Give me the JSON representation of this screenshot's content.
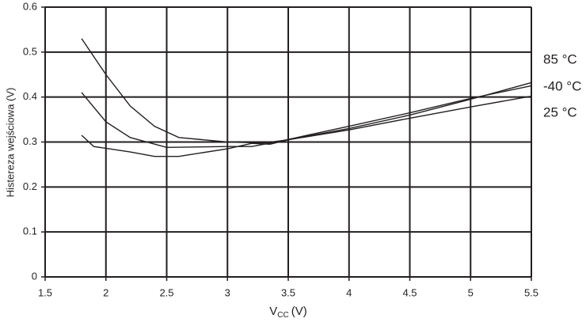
{
  "chart_data": {
    "type": "line",
    "ylabel": "Histereza wejściowa (V)",
    "xlabel": {
      "main": "V",
      "sub": "CC",
      "unit": "(V)"
    },
    "xlim": [
      1.5,
      5.5
    ],
    "xticks": [
      1.5,
      2,
      2.5,
      3,
      3.5,
      4,
      4.5,
      5,
      5.5
    ],
    "ylim": [
      0,
      0.6
    ],
    "yticks": [
      0,
      0.1,
      0.2,
      0.3,
      0.4,
      0.5,
      0.6
    ],
    "grid": true,
    "series": [
      {
        "name": "85 °C",
        "color": "#231f20",
        "x": [
          1.8,
          2.0,
          2.2,
          2.4,
          2.6,
          3.0,
          3.3,
          3.5,
          4.0,
          4.5,
          5.0,
          5.5
        ],
        "values": [
          0.53,
          0.45,
          0.38,
          0.335,
          0.31,
          0.3,
          0.298,
          0.305,
          0.33,
          0.36,
          0.395,
          0.432
        ]
      },
      {
        "name": "-40 °C",
        "color": "#231f20",
        "x": [
          1.8,
          2.0,
          2.2,
          2.5,
          3.0,
          3.2,
          3.4,
          4.0,
          4.5,
          5.0,
          5.5
        ],
        "values": [
          0.41,
          0.345,
          0.31,
          0.288,
          0.29,
          0.29,
          0.3,
          0.335,
          0.365,
          0.397,
          0.425
        ]
      },
      {
        "name": "25 °C",
        "color": "#231f20",
        "x": [
          1.8,
          1.9,
          2.2,
          2.4,
          2.6,
          3.0,
          3.2,
          3.35,
          3.5,
          4.0,
          4.5,
          5.0,
          5.5
        ],
        "values": [
          0.315,
          0.29,
          0.278,
          0.268,
          0.268,
          0.285,
          0.297,
          0.295,
          0.305,
          0.327,
          0.353,
          0.378,
          0.402
        ]
      }
    ]
  }
}
